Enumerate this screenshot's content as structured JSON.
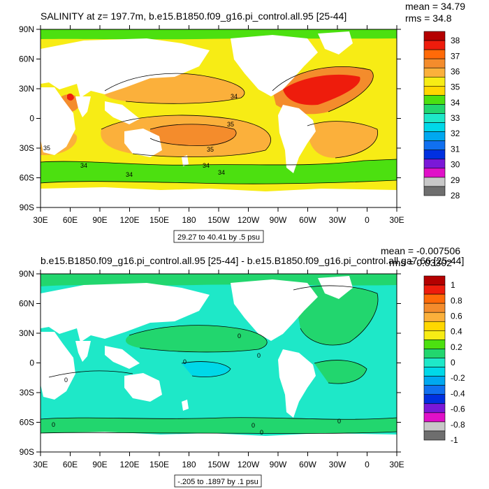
{
  "panels": [
    {
      "id": "top",
      "title": "SALINITY at z= 197.7m, b.e15.B1850.f09_g16.pi_control.all.95 [25-44]",
      "stats": {
        "mean": "mean = 34.79",
        "rms": "rms = 34.8"
      },
      "range_note": "29.27 to 40.41 by .5 psu",
      "lat_ticks": [
        "90N",
        "60N",
        "30N",
        "0",
        "30S",
        "60S",
        "90S"
      ],
      "lon_ticks": [
        "30E",
        "60E",
        "90E",
        "120E",
        "150E",
        "180",
        "150W",
        "120W",
        "90W",
        "60W",
        "30W",
        "0",
        "30E"
      ],
      "colorbar": {
        "labels": [
          "38",
          "37",
          "36",
          "35",
          "34",
          "33",
          "32",
          "31",
          "30",
          "29",
          "28"
        ],
        "colors": [
          "#b40000",
          "#ee1c0c",
          "#ff6a08",
          "#f48c2c",
          "#fbb03b",
          "#f7ec15",
          "#ffd700",
          "#4ce010",
          "#22d66e",
          "#1ee8c8",
          "#00d8e8",
          "#00a8f0",
          "#1070f0",
          "#0030e0",
          "#7a18d8",
          "#e010c8",
          "#c8c8c8",
          "#6e6e6e"
        ]
      },
      "contour_labels": [
        "34",
        "35",
        "35",
        "35",
        "34",
        "34",
        "34",
        "34"
      ]
    },
    {
      "id": "bottom",
      "title": "b.e15.B1850.f09_g16.pi_control.all.95 [25-44] - b.e15.B1850.f09_g16.pi_control.all.ga7.66 [25-44]",
      "stats": {
        "mean": "mean = -0.007506",
        "rms": "rms = 0.03302"
      },
      "range_note": "-.205 to .1897 by .1 psu",
      "lat_ticks": [
        "90N",
        "60N",
        "30N",
        "0",
        "30S",
        "60S",
        "90S"
      ],
      "lon_ticks": [
        "30E",
        "60E",
        "90E",
        "120E",
        "150E",
        "180",
        "150W",
        "120W",
        "90W",
        "60W",
        "30W",
        "0",
        "30E"
      ],
      "colorbar": {
        "labels": [
          "1",
          "0.8",
          "0.6",
          "0.4",
          "0.2",
          "0",
          "-0.2",
          "-0.4",
          "-0.6",
          "-0.8",
          "-1"
        ],
        "colors": [
          "#b40000",
          "#ee1c0c",
          "#ff6a08",
          "#f48c2c",
          "#fbb03b",
          "#ffd700",
          "#f7ec15",
          "#4ce010",
          "#22d66e",
          "#1ee8c8",
          "#00d8e8",
          "#00a8f0",
          "#1070f0",
          "#0030e0",
          "#7a18d8",
          "#e010c8",
          "#c8c8c8",
          "#6e6e6e"
        ]
      },
      "contour_labels": [
        "0",
        "0",
        "0",
        "0",
        "0",
        "0",
        "0",
        "0"
      ]
    }
  ],
  "colors": {
    "land": "#ffffff",
    "ocean_top_base": "#f7ec15",
    "ocean_bottom_base": "#1ee8c8"
  }
}
